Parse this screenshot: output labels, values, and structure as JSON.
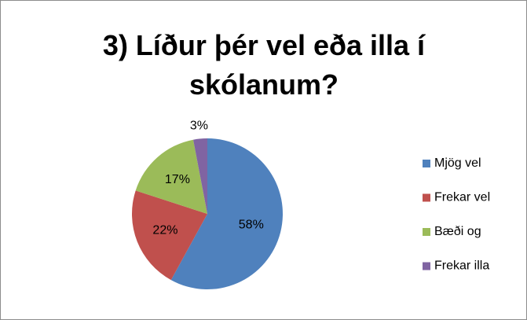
{
  "chart_data": {
    "type": "pie",
    "title": "3) Líður þér vel eða illa í skólanum?",
    "categories": [
      "Mjög vel",
      "Frekar vel",
      "Bæði og",
      "Frekar illa"
    ],
    "values": [
      58,
      22,
      17,
      3
    ],
    "value_labels": [
      "58%",
      "22%",
      "17%",
      "3%"
    ],
    "colors": [
      "#4f81bd",
      "#c0504d",
      "#9bbb59",
      "#8064a2"
    ],
    "legend": "right"
  }
}
